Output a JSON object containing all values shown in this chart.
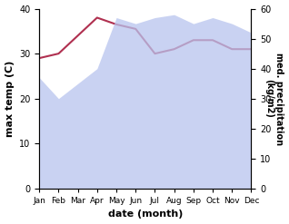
{
  "months": [
    "Jan",
    "Feb",
    "Mar",
    "Apr",
    "May",
    "Jun",
    "Jul",
    "Aug",
    "Sep",
    "Oct",
    "Nov",
    "Dec"
  ],
  "month_indices": [
    0,
    1,
    2,
    3,
    4,
    5,
    6,
    7,
    8,
    9,
    10,
    11
  ],
  "temperature": [
    29.0,
    30.0,
    34.0,
    38.0,
    36.5,
    35.5,
    30.0,
    31.0,
    33.0,
    33.0,
    31.0,
    31.0
  ],
  "precipitation": [
    37.0,
    30.0,
    35.0,
    40.0,
    57.0,
    55.0,
    57.0,
    58.0,
    55.0,
    57.0,
    55.0,
    52.0
  ],
  "temp_color": "#b03050",
  "precip_fill_color": "#b8c4ee",
  "ylabel_left": "max temp (C)",
  "ylabel_right": "med. precipitation\n(kg/m2)",
  "xlabel": "date (month)",
  "ylim_left": [
    0,
    40
  ],
  "ylim_right": [
    0,
    60
  ],
  "yticks_left": [
    0,
    10,
    20,
    30,
    40
  ],
  "yticks_right": [
    0,
    10,
    20,
    30,
    40,
    50,
    60
  ],
  "background_color": "#ffffff",
  "temp_linewidth": 1.5,
  "precip_alpha": 0.75
}
